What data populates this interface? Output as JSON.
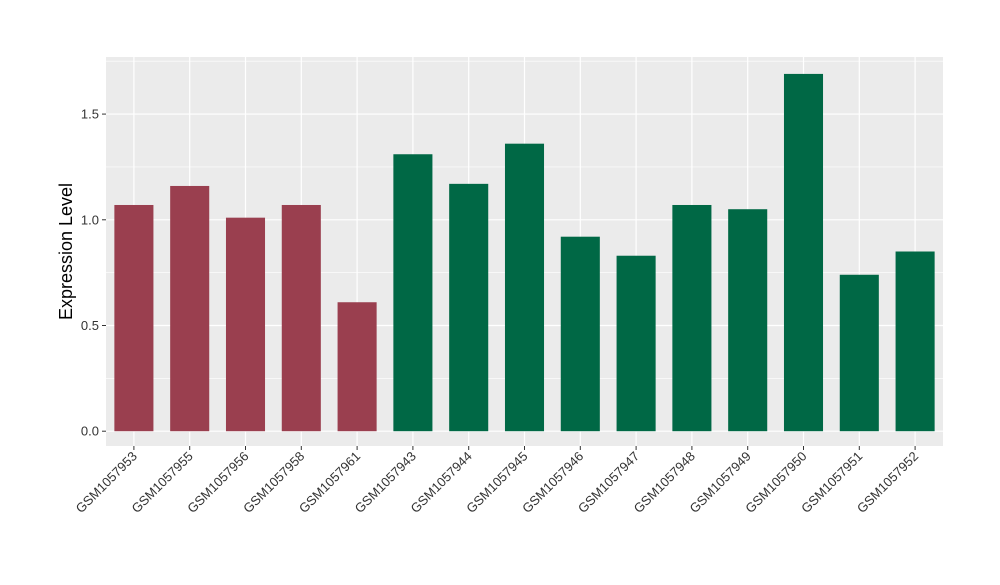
{
  "chart_data": {
    "type": "bar",
    "title": "",
    "xlabel": "",
    "ylabel": "Expression Level",
    "ylim": [
      -0.07,
      1.77
    ],
    "yticks": [
      0.0,
      0.5,
      1.0,
      1.5
    ],
    "ytick_labels": [
      "0.0",
      "0.5",
      "1.0",
      "1.5"
    ],
    "grid": true,
    "legend": "none",
    "colors": {
      "panel_background": "#EBEBEB",
      "grid_major": "#FFFFFF",
      "group_1": "#9A3F4F",
      "group_2": "#006845"
    },
    "categories": [
      "GSM1057953",
      "GSM1057955",
      "GSM1057956",
      "GSM1057958",
      "GSM1057961",
      "GSM1057943",
      "GSM1057944",
      "GSM1057945",
      "GSM1057946",
      "GSM1057947",
      "GSM1057948",
      "GSM1057949",
      "GSM1057950",
      "GSM1057951",
      "GSM1057952"
    ],
    "values": [
      1.07,
      1.16,
      1.01,
      1.07,
      0.61,
      1.31,
      1.17,
      1.36,
      0.92,
      0.83,
      1.07,
      1.05,
      1.69,
      0.74,
      0.85
    ],
    "bar_groups": [
      1,
      1,
      1,
      1,
      1,
      2,
      2,
      2,
      2,
      2,
      2,
      2,
      2,
      2,
      2
    ]
  }
}
